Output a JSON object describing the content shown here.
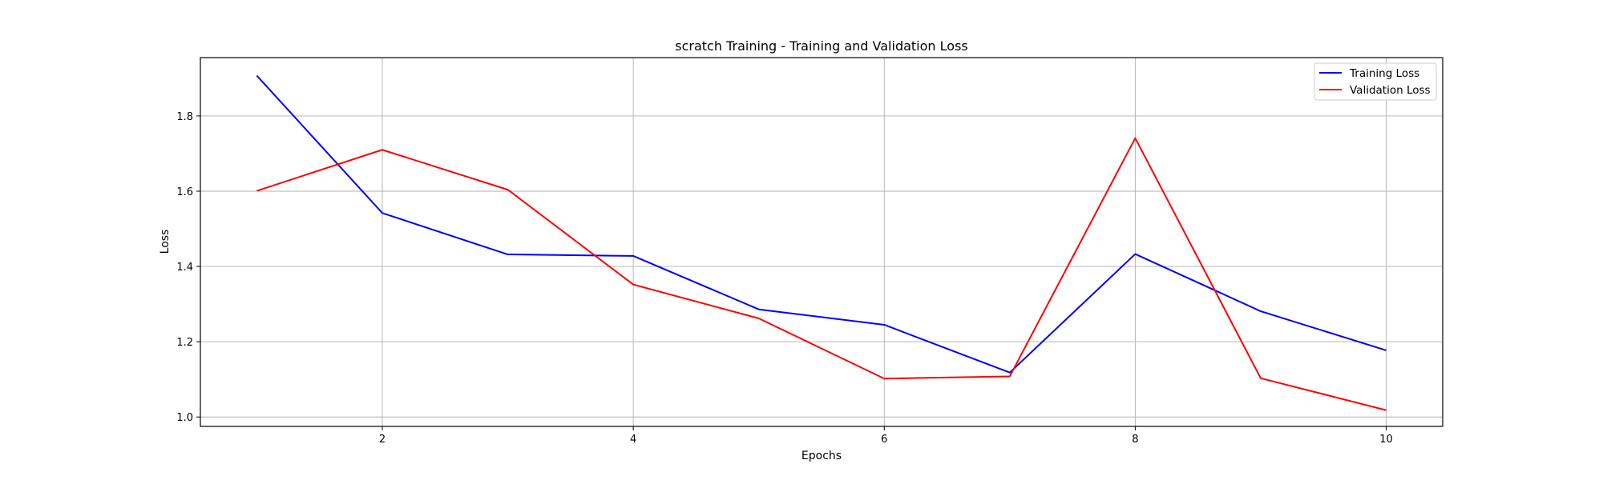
{
  "chart_data": {
    "type": "line",
    "title": "scratch Training - Training and Validation Loss",
    "xlabel": "Epochs",
    "ylabel": "Loss",
    "x": [
      1,
      2,
      3,
      4,
      5,
      6,
      7,
      8,
      9,
      10
    ],
    "xticks": [
      2,
      4,
      6,
      8,
      10
    ],
    "yticks": [
      1.0,
      1.2,
      1.4,
      1.6,
      1.8
    ],
    "xlim": [
      0.55,
      10.45
    ],
    "ylim": [
      0.975,
      1.955
    ],
    "grid": true,
    "legend_position": "top-right",
    "series": [
      {
        "name": "Training Loss",
        "color": "#0000ff",
        "values": [
          1.907,
          1.542,
          1.432,
          1.428,
          1.286,
          1.245,
          1.118,
          1.433,
          1.281,
          1.177
        ]
      },
      {
        "name": "Validation Loss",
        "color": "#ff0000",
        "values": [
          1.601,
          1.71,
          1.604,
          1.352,
          1.262,
          1.102,
          1.108,
          1.741,
          1.103,
          1.018
        ]
      }
    ]
  }
}
